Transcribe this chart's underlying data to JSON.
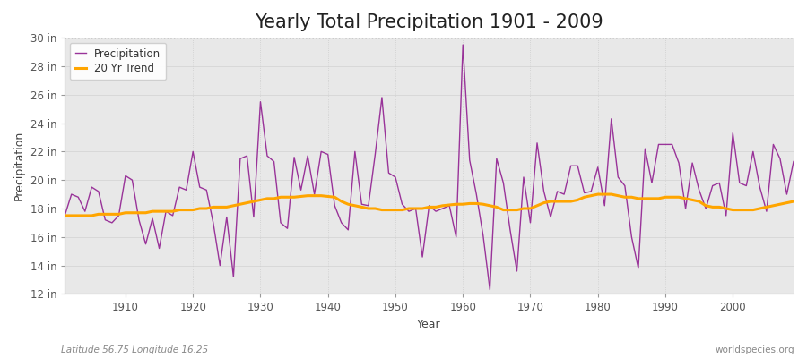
{
  "title": "Yearly Total Precipitation 1901 - 2009",
  "xlabel": "Year",
  "ylabel": "Precipitation",
  "lat_lon_label": "Latitude 56.75 Longitude 16.25",
  "worldspecies_label": "worldspecies.org",
  "years": [
    1901,
    1902,
    1903,
    1904,
    1905,
    1906,
    1907,
    1908,
    1909,
    1910,
    1911,
    1912,
    1913,
    1914,
    1915,
    1916,
    1917,
    1918,
    1919,
    1920,
    1921,
    1922,
    1923,
    1924,
    1925,
    1926,
    1927,
    1928,
    1929,
    1930,
    1931,
    1932,
    1933,
    1934,
    1935,
    1936,
    1937,
    1938,
    1939,
    1940,
    1941,
    1942,
    1943,
    1944,
    1945,
    1946,
    1947,
    1948,
    1949,
    1950,
    1951,
    1952,
    1953,
    1954,
    1955,
    1956,
    1957,
    1958,
    1959,
    1960,
    1961,
    1962,
    1963,
    1964,
    1965,
    1966,
    1967,
    1968,
    1969,
    1970,
    1971,
    1972,
    1973,
    1974,
    1975,
    1976,
    1977,
    1978,
    1979,
    1980,
    1981,
    1982,
    1983,
    1984,
    1985,
    1986,
    1987,
    1988,
    1989,
    1990,
    1991,
    1992,
    1993,
    1994,
    1995,
    1996,
    1997,
    1998,
    1999,
    2000,
    2001,
    2002,
    2003,
    2004,
    2005,
    2006,
    2007,
    2008,
    2009
  ],
  "precipitation": [
    17.5,
    19.0,
    18.8,
    17.8,
    19.5,
    19.2,
    17.2,
    17.0,
    17.5,
    20.3,
    20.0,
    17.2,
    15.5,
    17.3,
    15.2,
    17.8,
    17.5,
    19.5,
    19.3,
    22.0,
    19.5,
    19.3,
    17.0,
    14.0,
    17.4,
    13.2,
    21.5,
    21.7,
    17.4,
    25.5,
    21.7,
    21.3,
    17.0,
    16.6,
    21.6,
    19.3,
    21.7,
    19.0,
    22.0,
    21.8,
    18.2,
    17.0,
    16.5,
    22.0,
    18.3,
    18.2,
    21.8,
    25.8,
    20.5,
    20.2,
    18.3,
    17.8,
    18.0,
    14.6,
    18.2,
    17.8,
    18.0,
    18.2,
    16.0,
    29.5,
    21.4,
    19.0,
    16.1,
    12.3,
    21.5,
    19.8,
    16.5,
    13.6,
    20.2,
    17.0,
    22.6,
    19.2,
    17.4,
    19.2,
    19.0,
    21.0,
    21.0,
    19.1,
    19.2,
    20.9,
    18.2,
    24.3,
    20.2,
    19.6,
    16.0,
    13.8,
    22.2,
    19.8,
    22.5,
    22.5,
    22.5,
    21.2,
    18.0,
    21.2,
    19.3,
    18.0,
    19.6,
    19.8,
    17.5,
    23.3,
    19.8,
    19.6,
    22.0,
    19.5,
    17.8,
    22.5,
    21.5,
    19.0,
    21.3
  ],
  "trend": [
    17.5,
    17.5,
    17.5,
    17.5,
    17.5,
    17.6,
    17.6,
    17.6,
    17.6,
    17.7,
    17.7,
    17.7,
    17.7,
    17.8,
    17.8,
    17.8,
    17.8,
    17.9,
    17.9,
    17.9,
    18.0,
    18.0,
    18.1,
    18.1,
    18.1,
    18.2,
    18.3,
    18.4,
    18.5,
    18.6,
    18.7,
    18.7,
    18.8,
    18.8,
    18.8,
    18.85,
    18.9,
    18.9,
    18.9,
    18.85,
    18.8,
    18.5,
    18.3,
    18.2,
    18.1,
    18.0,
    18.0,
    17.9,
    17.9,
    17.9,
    17.9,
    18.0,
    18.0,
    18.0,
    18.1,
    18.1,
    18.2,
    18.25,
    18.3,
    18.3,
    18.35,
    18.35,
    18.3,
    18.2,
    18.1,
    17.9,
    17.9,
    17.9,
    18.0,
    18.0,
    18.2,
    18.4,
    18.5,
    18.5,
    18.5,
    18.5,
    18.6,
    18.8,
    18.9,
    19.0,
    19.0,
    19.0,
    18.9,
    18.8,
    18.8,
    18.7,
    18.7,
    18.7,
    18.7,
    18.8,
    18.8,
    18.8,
    18.7,
    18.6,
    18.5,
    18.2,
    18.1,
    18.1,
    18.0,
    17.9,
    17.9,
    17.9,
    17.9,
    18.0,
    18.1,
    18.2,
    18.3,
    18.4,
    18.5
  ],
  "precip_color": "#993399",
  "trend_color": "#FFA500",
  "fig_bg_color": "#ffffff",
  "plot_bg_color": "#E8E8E8",
  "ylim": [
    12,
    30
  ],
  "yticks": [
    12,
    14,
    16,
    18,
    20,
    22,
    24,
    26,
    28,
    30
  ],
  "ytick_labels": [
    "12 in",
    "14 in",
    "16 in",
    "18 in",
    "20 in",
    "22 in",
    "24 in",
    "26 in",
    "28 in",
    "30 in"
  ],
  "xlim": [
    1901,
    2009
  ],
  "xticks": [
    1910,
    1920,
    1930,
    1940,
    1950,
    1960,
    1970,
    1980,
    1990,
    2000
  ],
  "title_fontsize": 15,
  "axis_label_fontsize": 9,
  "tick_label_fontsize": 8.5,
  "legend_fontsize": 8.5,
  "dotted_line_y": 30
}
